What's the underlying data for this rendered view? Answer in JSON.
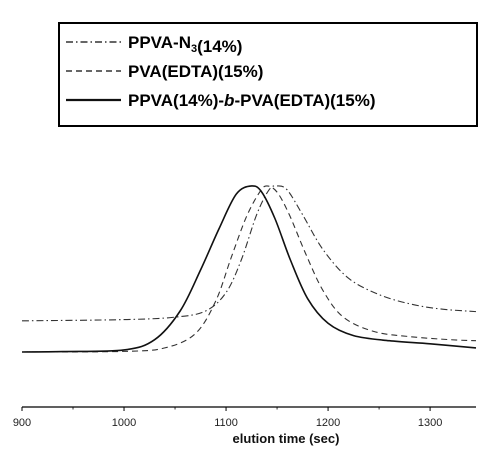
{
  "chart_data": {
    "type": "line",
    "title": "",
    "xlabel": "elution time (sec)",
    "ylabel": "",
    "xlim": [
      900,
      1345
    ],
    "ylim": [
      0,
      1
    ],
    "xticks": [
      900,
      1000,
      1100,
      1200,
      1300
    ],
    "xtick_labels": [
      "900",
      "1000",
      "1100",
      "1200",
      "1300"
    ],
    "y_axis_shown": false,
    "grid": false,
    "legend_position": "top",
    "series": [
      {
        "name": "PPVA-N3(14%)",
        "legend_parts": [
          {
            "text": "PPVA-N",
            "sub": false
          },
          {
            "text": "3",
            "sub": true
          },
          {
            "text": "(14%)",
            "sub": false
          }
        ],
        "style": "dash-dot",
        "color": "#333333",
        "points": [
          [
            900,
            0.152
          ],
          [
            1000,
            0.158
          ],
          [
            1050,
            0.17
          ],
          [
            1080,
            0.2
          ],
          [
            1100,
            0.29
          ],
          [
            1115,
            0.45
          ],
          [
            1130,
            0.67
          ],
          [
            1142,
            0.79
          ],
          [
            1150,
            0.81
          ],
          [
            1160,
            0.79
          ],
          [
            1175,
            0.67
          ],
          [
            1195,
            0.5
          ],
          [
            1220,
            0.36
          ],
          [
            1250,
            0.28
          ],
          [
            1280,
            0.235
          ],
          [
            1310,
            0.21
          ],
          [
            1345,
            0.197
          ]
        ]
      },
      {
        "name": "PVA(EDTA)(15%)",
        "legend_parts": [
          {
            "text": "PVA(EDTA)(15%)",
            "sub": false
          }
        ],
        "style": "dashed",
        "color": "#333333",
        "points": [
          [
            900,
            0.0
          ],
          [
            1000,
            0.003
          ],
          [
            1040,
            0.02
          ],
          [
            1070,
            0.09
          ],
          [
            1090,
            0.25
          ],
          [
            1105,
            0.46
          ],
          [
            1120,
            0.66
          ],
          [
            1133,
            0.78
          ],
          [
            1140,
            0.81
          ],
          [
            1150,
            0.78
          ],
          [
            1162,
            0.67
          ],
          [
            1178,
            0.48
          ],
          [
            1195,
            0.3
          ],
          [
            1215,
            0.17
          ],
          [
            1245,
            0.1
          ],
          [
            1280,
            0.075
          ],
          [
            1320,
            0.06
          ],
          [
            1345,
            0.055
          ]
        ]
      },
      {
        "name": "PPVA(14%)-b-PVA(EDTA)(15%)",
        "legend_parts": [
          {
            "text": "PPVA(14%)-",
            "sub": false,
            "italic": false
          },
          {
            "text": "b",
            "sub": false,
            "italic": true
          },
          {
            "text": "-PVA(EDTA)(15%)",
            "sub": false,
            "italic": false
          }
        ],
        "style": "solid",
        "color": "#111111",
        "points": [
          [
            900,
            0.0
          ],
          [
            940,
            0.002
          ],
          [
            1000,
            0.01
          ],
          [
            1030,
            0.06
          ],
          [
            1055,
            0.2
          ],
          [
            1075,
            0.4
          ],
          [
            1093,
            0.6
          ],
          [
            1110,
            0.77
          ],
          [
            1125,
            0.81
          ],
          [
            1135,
            0.78
          ],
          [
            1148,
            0.65
          ],
          [
            1163,
            0.45
          ],
          [
            1180,
            0.26
          ],
          [
            1200,
            0.14
          ],
          [
            1225,
            0.08
          ],
          [
            1260,
            0.055
          ],
          [
            1300,
            0.04
          ],
          [
            1345,
            0.02
          ]
        ]
      }
    ]
  }
}
